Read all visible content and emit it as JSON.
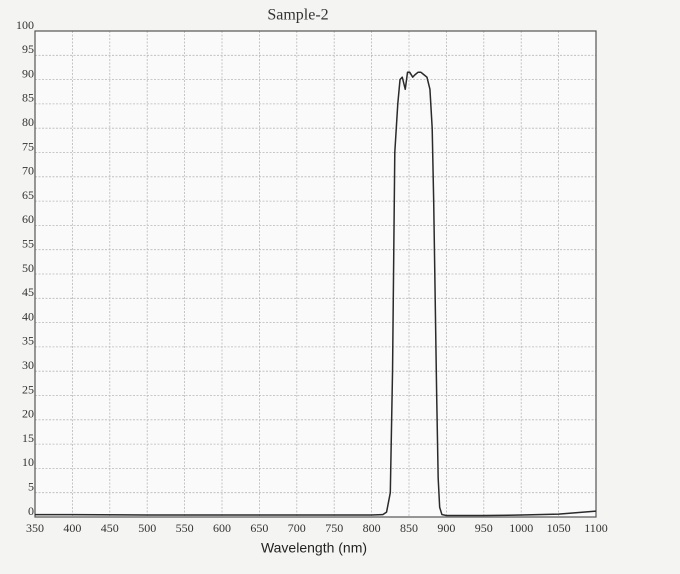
{
  "chart_data": {
    "type": "line",
    "title": "Sample-2",
    "x_label": "Wavelength (nm)",
    "x": [
      350,
      400,
      500,
      600,
      700,
      800,
      815,
      820,
      825,
      828,
      831,
      835,
      838,
      841,
      845,
      848,
      851,
      855,
      858,
      862,
      866,
      870,
      874,
      878,
      881,
      883,
      885,
      887,
      889,
      891,
      894,
      900,
      950,
      1000,
      1050,
      1100
    ],
    "series": [
      {
        "name": "Sample-2",
        "color": "#2a2a2a",
        "values": [
          0.5,
          0.5,
          0.4,
          0.4,
          0.4,
          0.4,
          0.5,
          1,
          5,
          30,
          75,
          85,
          90,
          90.5,
          88,
          91.5,
          91.5,
          90.5,
          91,
          91.5,
          91.5,
          91,
          90.5,
          88,
          80,
          65,
          45,
          25,
          8,
          2,
          0.5,
          0.3,
          0.3,
          0.4,
          0.6,
          1.2
        ]
      }
    ],
    "xlim": [
      350,
      1100
    ],
    "xticks": [
      350,
      400,
      450,
      500,
      550,
      600,
      650,
      700,
      750,
      800,
      850,
      900,
      950,
      1000,
      1050,
      1100
    ],
    "ylim": [
      0,
      100
    ],
    "yticks": [
      0,
      5,
      10,
      15,
      20,
      25,
      30,
      35,
      40,
      45,
      50,
      55,
      60,
      65,
      70,
      75,
      80,
      85,
      90,
      95,
      100
    ],
    "grid": true
  }
}
